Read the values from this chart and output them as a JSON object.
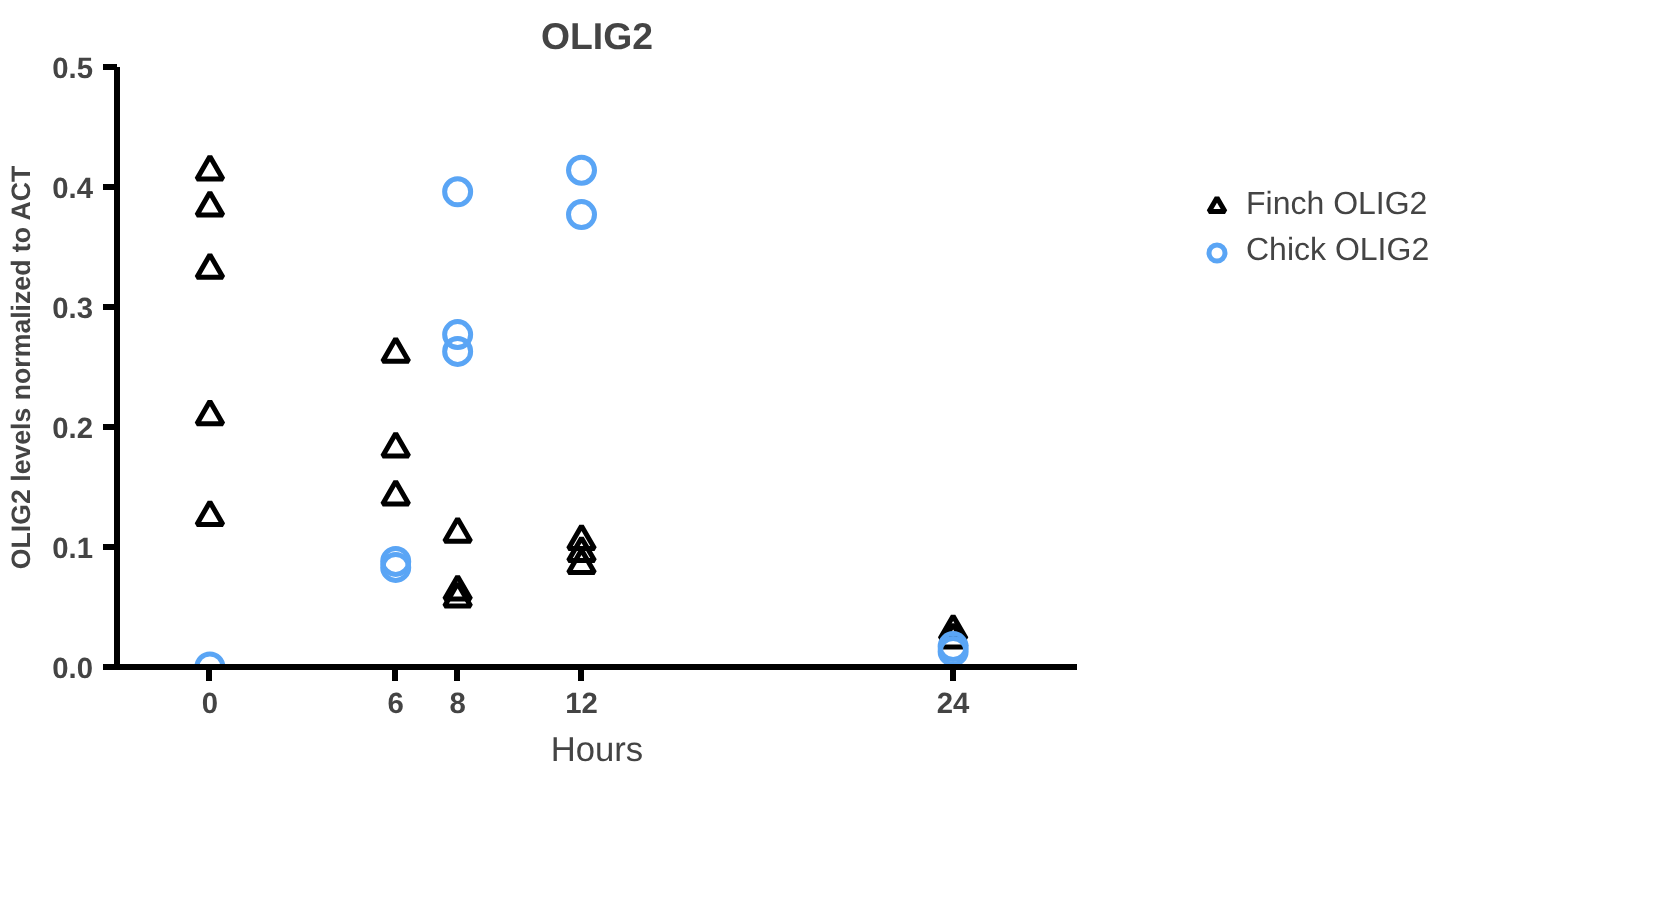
{
  "chart_data": {
    "type": "scatter",
    "title": "OLIG2",
    "xlabel": "Hours",
    "ylabel": "OLIG2 levels normalized to ACT",
    "xlim": [
      -3,
      28
    ],
    "xticks": [
      0,
      6,
      8,
      12,
      24
    ],
    "ylim": [
      0,
      0.5
    ],
    "yticks": [
      {
        "value": 0,
        "label": "0.0"
      },
      0.1,
      0.2,
      0.3,
      0.4,
      0.5
    ],
    "grid": false,
    "legend": "top right",
    "series": [
      {
        "name": "Finch OLIG2",
        "color": "#000000",
        "marker": "triangle",
        "x": [
          0,
          0,
          0,
          0,
          0,
          6,
          6,
          6,
          8,
          8,
          8,
          12,
          12,
          12,
          24,
          24
        ],
        "values": [
          0.413,
          0.383,
          0.331,
          0.209,
          0.125,
          0.261,
          0.182,
          0.142,
          0.111,
          0.063,
          0.057,
          0.105,
          0.095,
          0.085,
          0.03,
          0.023
        ]
      },
      {
        "name": "Chick OLIG2",
        "color": "#5aa5f5",
        "marker": "circle",
        "x": [
          0,
          6,
          6,
          8,
          8,
          8,
          12,
          12,
          24,
          24
        ],
        "values": [
          0.0,
          0.088,
          0.083,
          0.396,
          0.277,
          0.263,
          0.414,
          0.377,
          0.017,
          0.013
        ]
      }
    ]
  }
}
